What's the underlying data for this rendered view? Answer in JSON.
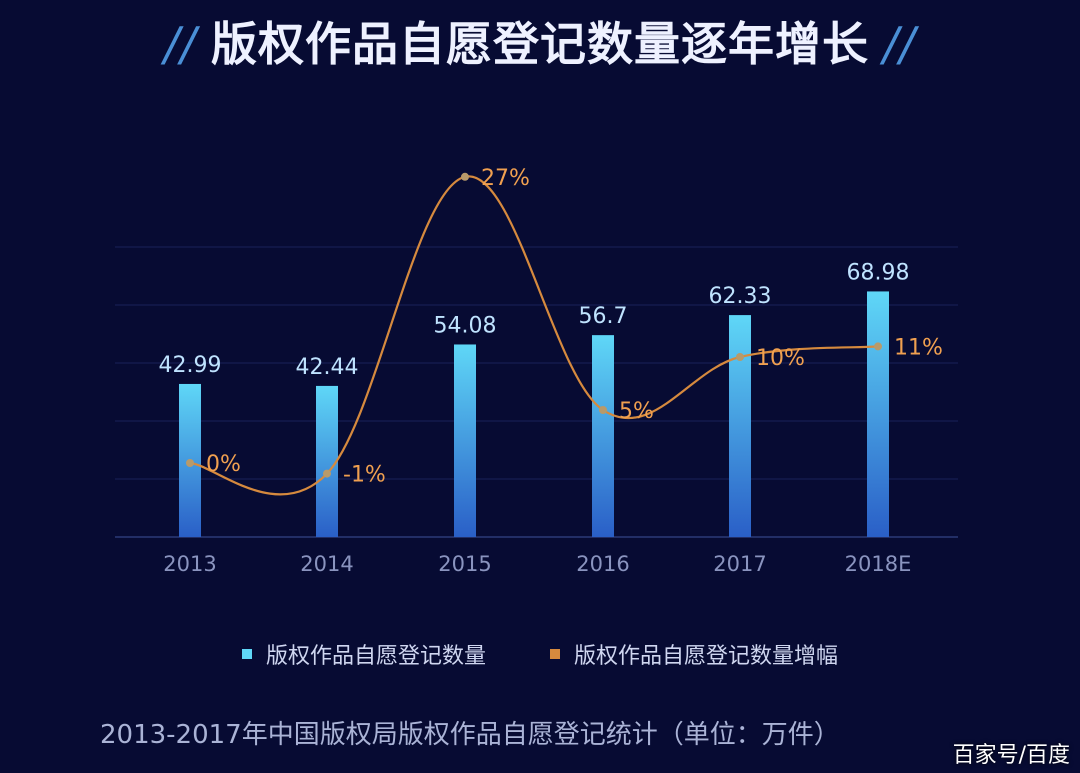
{
  "title": "版权作品自愿登记数量逐年增长",
  "title_decor": "//",
  "caption": "2013-2017年中国版权局版权作品自愿登记统计（单位：万件）",
  "watermark": "百家号/百度",
  "colors": {
    "background": "#070b33",
    "bar_top": "#5fd7f7",
    "bar_bottom": "#2a5fc7",
    "line": "#d68a3e",
    "value_label": "#bfe3ff",
    "pct_label": "#f0a050"
  },
  "chart_data": {
    "type": "bar",
    "categories": [
      "2013",
      "2014",
      "2015",
      "2016",
      "2017",
      "2018E"
    ],
    "series": [
      {
        "name": "版权作品自愿登记数量",
        "type": "bar",
        "values": [
          42.99,
          42.44,
          54.08,
          56.7,
          62.33,
          68.98
        ],
        "labels": [
          "42.99",
          "42.44",
          "54.08",
          "56.7",
          "62.33",
          "68.98"
        ]
      },
      {
        "name": "版权作品自愿登记数量增幅",
        "type": "line",
        "values": [
          0,
          -1,
          27,
          5,
          10,
          11
        ],
        "labels": [
          "0%",
          "-1%",
          "27%",
          "5%",
          "10%",
          "11%"
        ]
      }
    ],
    "legend_position": "bottom",
    "grid": true
  }
}
